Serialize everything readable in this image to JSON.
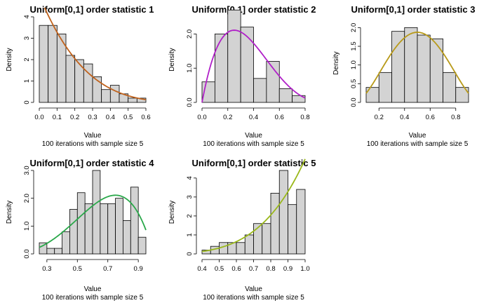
{
  "chart_data": [
    {
      "type": "bar",
      "title": "Uniform[0,1]  order statistic 1",
      "xlabel": "Value",
      "subtitle": "100 iterations with sample size 5",
      "ylabel": "Density",
      "xlim": [
        0,
        0.6
      ],
      "ylim": [
        0,
        4
      ],
      "xticks": [
        "0.0",
        "0.1",
        "0.2",
        "0.3",
        "0.4",
        "0.5",
        "0.6"
      ],
      "yticks": [
        "0",
        "1",
        "2",
        "3",
        "4"
      ],
      "bin_edges": [
        0,
        0.05,
        0.1,
        0.15,
        0.2,
        0.25,
        0.3,
        0.35,
        0.4,
        0.45,
        0.5,
        0.55,
        0.6
      ],
      "values": [
        3.6,
        3.6,
        3.2,
        2.2,
        2.0,
        1.8,
        1.2,
        0.6,
        0.8,
        0.4,
        0.2,
        0.2
      ],
      "curve_color": "#c0621c",
      "curve": {
        "k": 1,
        "n": 5,
        "range": [
          0.03,
          0.6
        ]
      }
    },
    {
      "type": "bar",
      "title": "Uniform[0,1]  order statistic 2",
      "xlabel": "Value",
      "subtitle": "100 iterations with sample size 5",
      "ylabel": "Density",
      "xlim": [
        0,
        0.8
      ],
      "ylim": [
        0,
        2.5
      ],
      "xticks": [
        "0.0",
        "0.2",
        "0.4",
        "0.6",
        "0.8"
      ],
      "yticks": [
        "0.0",
        "1.0",
        "2.0"
      ],
      "bin_edges": [
        0,
        0.1,
        0.2,
        0.3,
        0.4,
        0.5,
        0.6,
        0.7,
        0.8
      ],
      "values": [
        0.6,
        2.0,
        2.7,
        2.2,
        0.7,
        1.2,
        0.4,
        0.2
      ],
      "curve_color": "#b020c8",
      "curve": {
        "k": 2,
        "n": 5,
        "range": [
          0.0,
          0.8
        ]
      }
    },
    {
      "type": "bar",
      "title": "Uniform[0,1]  order statistic 3",
      "xlabel": "Value",
      "subtitle": "100 iterations with sample size 5",
      "ylabel": "Density",
      "xlim": [
        0.1,
        0.9
      ],
      "ylim": [
        0,
        2.1
      ],
      "xticks": [
        "0.2",
        "0.4",
        "0.6",
        "0.8"
      ],
      "yticks": [
        "0.0",
        "0.5",
        "1.0",
        "1.5",
        "2.0"
      ],
      "bin_edges": [
        0.1,
        0.2,
        0.3,
        0.4,
        0.5,
        0.6,
        0.7,
        0.8,
        0.9
      ],
      "values": [
        0.4,
        0.8,
        1.9,
        2.0,
        1.8,
        1.7,
        0.8,
        0.4
      ],
      "curve_color": "#b89a1a",
      "curve": {
        "k": 3,
        "n": 5,
        "range": [
          0.1,
          0.9
        ]
      }
    },
    {
      "type": "bar",
      "title": "Uniform[0,1]  order statistic 4",
      "xlabel": "Value",
      "subtitle": "100 iterations with sample size 5",
      "ylabel": "Density",
      "xlim": [
        0.25,
        0.95
      ],
      "ylim": [
        0,
        3
      ],
      "xticks": [
        "0.3",
        "0.5",
        "0.7",
        "0.9"
      ],
      "yticks": [
        "0.0",
        "1.0",
        "2.0",
        "3.0"
      ],
      "bin_edges": [
        0.25,
        0.3,
        0.35,
        0.4,
        0.45,
        0.5,
        0.55,
        0.6,
        0.65,
        0.7,
        0.75,
        0.8,
        0.85,
        0.9,
        0.95
      ],
      "values": [
        0.4,
        0.2,
        0.2,
        0.8,
        1.6,
        2.2,
        1.8,
        3.0,
        1.8,
        1.8,
        2.0,
        1.2,
        2.4,
        0.6
      ],
      "curve_color": "#2aa84a",
      "curve": {
        "k": 4,
        "n": 5,
        "range": [
          0.25,
          0.95
        ]
      }
    },
    {
      "type": "bar",
      "title": "Uniform[0,1]  order statistic 5",
      "xlabel": "Value",
      "subtitle": "100 iterations with sample size 5",
      "ylabel": "Density",
      "xlim": [
        0.4,
        1.0
      ],
      "ylim": [
        0,
        4.4
      ],
      "xticks": [
        "0.4",
        "0.5",
        "0.6",
        "0.7",
        "0.8",
        "0.9",
        "1.0"
      ],
      "yticks": [
        "0",
        "1",
        "2",
        "3",
        "4"
      ],
      "bin_edges": [
        0.4,
        0.45,
        0.5,
        0.55,
        0.6,
        0.65,
        0.7,
        0.75,
        0.8,
        0.85,
        0.9,
        0.95,
        1.0
      ],
      "values": [
        0.2,
        0.4,
        0.6,
        0.6,
        0.6,
        1.0,
        1.6,
        1.6,
        3.2,
        4.4,
        2.6,
        3.4
      ],
      "curve_color": "#9ab81a",
      "curve": {
        "k": 5,
        "n": 5,
        "range": [
          0.4,
          1.0
        ]
      }
    }
  ]
}
